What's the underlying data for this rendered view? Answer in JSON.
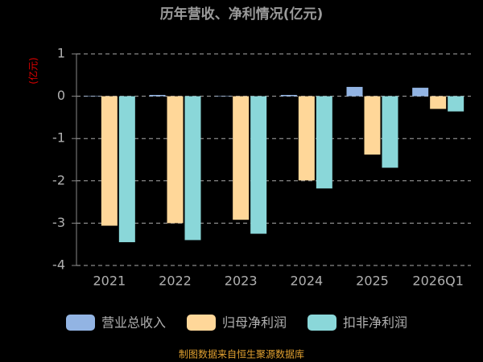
{
  "chart_data": {
    "type": "bar",
    "title": "历年营收、净利情况(亿元)",
    "y_label": "(亿元)",
    "categories": [
      "2021",
      "2022",
      "2023",
      "2024",
      "2025",
      "2026Q1"
    ],
    "series": [
      {
        "name": "营业总收入",
        "color": "#92b4e3",
        "values": [
          0.01,
          0.03,
          0.01,
          0.03,
          0.22,
          0.2
        ]
      },
      {
        "name": "归母净利润",
        "color": "#ffd799",
        "values": [
          -3.06,
          -3.0,
          -2.92,
          -1.99,
          -1.38,
          -0.3
        ]
      },
      {
        "name": "扣非净利润",
        "color": "#8ad7d9",
        "values": [
          -3.45,
          -3.4,
          -3.25,
          -2.18,
          -1.69,
          -0.36
        ]
      }
    ],
    "ylim": [
      -4,
      1
    ],
    "yticks": [
      -4,
      -3,
      -2,
      -1,
      0,
      1
    ],
    "grid": true,
    "legend": "bottom",
    "source": "制图数据来自恒生聚源数据库"
  }
}
